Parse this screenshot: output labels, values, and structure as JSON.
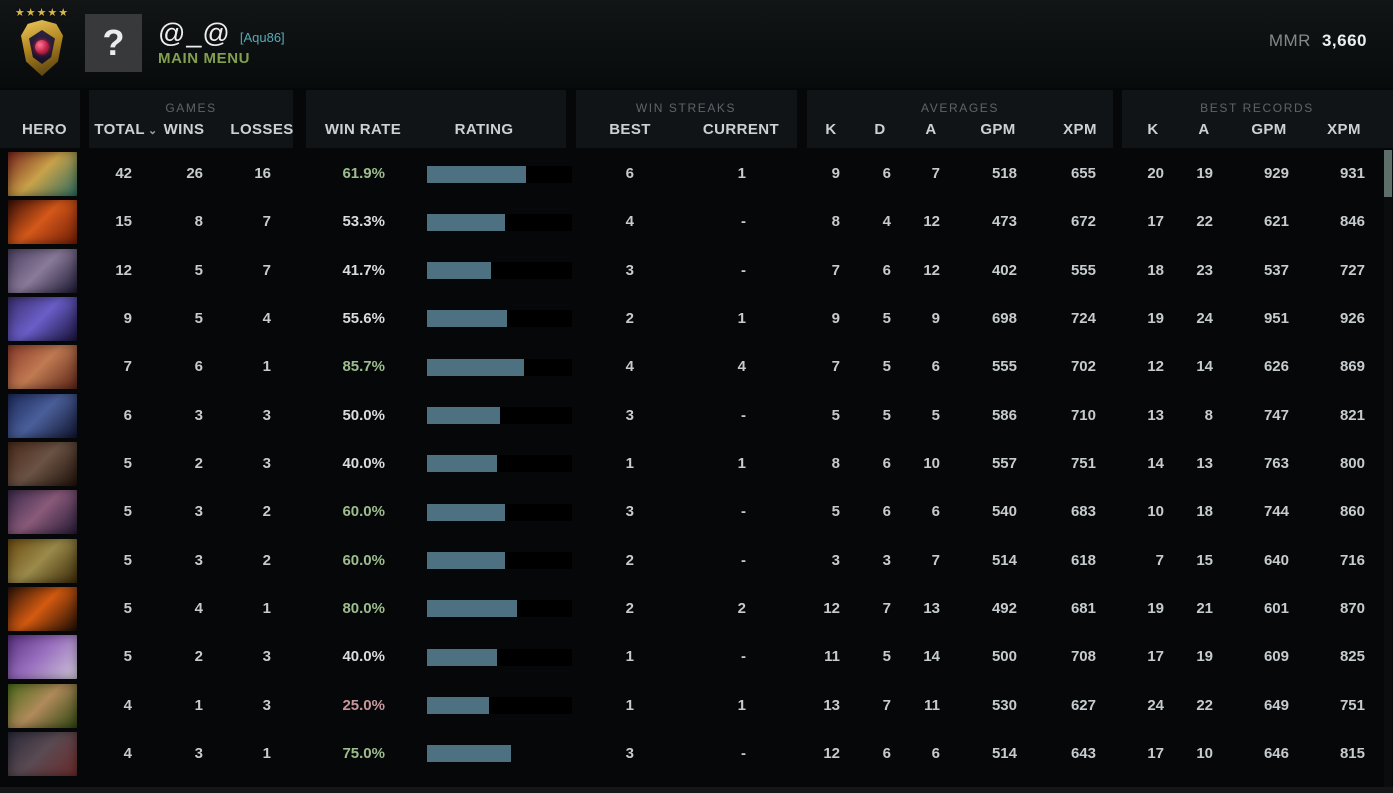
{
  "topbar": {
    "player_name": "@_@",
    "player_tag": "[Aqu86]",
    "main_menu_label": "MAIN MENU",
    "avatar_glyph": "?",
    "medal_stars": "★★★★★",
    "mmr_label": "MMR",
    "mmr_value": "3,660"
  },
  "header": {
    "hero": "HERO",
    "games_group": "GAMES",
    "total": "TOTAL",
    "sort_caret": "⌄",
    "wins": "WINS",
    "losses": "LOSSES",
    "win_rate": "WIN RATE",
    "rating": "RATING",
    "streaks_group": "WIN STREAKS",
    "best": "BEST",
    "current": "CURRENT",
    "averages_group": "AVERAGES",
    "k": "K",
    "d": "D",
    "a": "A",
    "gpm": "GPM",
    "xpm": "XPM",
    "records_group": "BEST RECORDS",
    "rk": "K",
    "ra": "A",
    "rgpm": "GPM",
    "rxpm": "XPM"
  },
  "theme": {
    "win_green": "#9dbd8d",
    "win_red": "#c9969b",
    "bar_fill": "#4e7182",
    "menu_green": "#82a04e",
    "tag_teal": "#58aab8",
    "star_gold": "#d8b84a"
  },
  "table": {
    "rows": [
      {
        "hero": {
          "id": "hero-01",
          "colors": [
            "#7a241c",
            "#c9a24a",
            "#2a6b5e"
          ]
        },
        "total": "42",
        "wins": "26",
        "losses": "16",
        "win_rate": "61.9%",
        "tone": "green",
        "rating_pct": 68,
        "rating_track": true,
        "best": "6",
        "current": "1",
        "k": "9",
        "d": "6",
        "a": "7",
        "gpm": "518",
        "xpm": "655",
        "bk": "20",
        "ba": "19",
        "bgpm": "929",
        "bxpm": "931"
      },
      {
        "hero": {
          "id": "hero-02",
          "colors": [
            "#3a0f06",
            "#d4581a",
            "#6e1c06"
          ]
        },
        "total": "15",
        "wins": "8",
        "losses": "7",
        "win_rate": "53.3%",
        "tone": "neutral",
        "rating_pct": 54,
        "rating_track": true,
        "best": "4",
        "current": "-",
        "k": "8",
        "d": "4",
        "a": "12",
        "gpm": "473",
        "xpm": "672",
        "bk": "17",
        "ba": "22",
        "bgpm": "621",
        "bxpm": "846"
      },
      {
        "hero": {
          "id": "hero-03",
          "colors": [
            "#4a4060",
            "#8a7a9a",
            "#1c1830"
          ]
        },
        "total": "12",
        "wins": "5",
        "losses": "7",
        "win_rate": "41.7%",
        "tone": "neutral",
        "rating_pct": 44,
        "rating_track": true,
        "best": "3",
        "current": "-",
        "k": "7",
        "d": "6",
        "a": "12",
        "gpm": "402",
        "xpm": "555",
        "bk": "18",
        "ba": "23",
        "bgpm": "537",
        "bxpm": "727"
      },
      {
        "hero": {
          "id": "hero-04",
          "colors": [
            "#3a2e6e",
            "#6a5ec8",
            "#18123a"
          ]
        },
        "total": "9",
        "wins": "5",
        "losses": "4",
        "win_rate": "55.6%",
        "tone": "neutral",
        "rating_pct": 55,
        "rating_track": true,
        "best": "2",
        "current": "1",
        "k": "9",
        "d": "5",
        "a": "9",
        "gpm": "698",
        "xpm": "724",
        "bk": "19",
        "ba": "24",
        "bgpm": "951",
        "bxpm": "926"
      },
      {
        "hero": {
          "id": "hero-05",
          "colors": [
            "#8a3a2a",
            "#c07a52",
            "#5a2418"
          ]
        },
        "total": "7",
        "wins": "6",
        "losses": "1",
        "win_rate": "85.7%",
        "tone": "green",
        "rating_pct": 67,
        "rating_track": true,
        "best": "4",
        "current": "4",
        "k": "7",
        "d": "5",
        "a": "6",
        "gpm": "555",
        "xpm": "702",
        "bk": "12",
        "ba": "14",
        "bgpm": "626",
        "bxpm": "869"
      },
      {
        "hero": {
          "id": "hero-06",
          "colors": [
            "#1c2a5a",
            "#4a5f9a",
            "#10142e"
          ]
        },
        "total": "6",
        "wins": "3",
        "losses": "3",
        "win_rate": "50.0%",
        "tone": "neutral",
        "rating_pct": 50,
        "rating_track": true,
        "best": "3",
        "current": "-",
        "k": "5",
        "d": "5",
        "a": "5",
        "gpm": "586",
        "xpm": "710",
        "bk": "13",
        "ba": "8",
        "bgpm": "747",
        "bxpm": "821"
      },
      {
        "hero": {
          "id": "hero-07",
          "colors": [
            "#4a2a1a",
            "#6a5244",
            "#1e1008"
          ]
        },
        "total": "5",
        "wins": "2",
        "losses": "3",
        "win_rate": "40.0%",
        "tone": "neutral",
        "rating_pct": 48,
        "rating_track": true,
        "best": "1",
        "current": "1",
        "k": "8",
        "d": "6",
        "a": "10",
        "gpm": "557",
        "xpm": "751",
        "bk": "14",
        "ba": "13",
        "bgpm": "763",
        "bxpm": "800"
      },
      {
        "hero": {
          "id": "hero-08",
          "colors": [
            "#3a2a4a",
            "#8a5a7a",
            "#241a34"
          ]
        },
        "total": "5",
        "wins": "3",
        "losses": "2",
        "win_rate": "60.0%",
        "tone": "green",
        "rating_pct": 54,
        "rating_track": true,
        "best": "3",
        "current": "-",
        "k": "5",
        "d": "6",
        "a": "6",
        "gpm": "540",
        "xpm": "683",
        "bk": "10",
        "ba": "18",
        "bgpm": "744",
        "bxpm": "860"
      },
      {
        "hero": {
          "id": "hero-09",
          "colors": [
            "#6a4a10",
            "#9a8a4a",
            "#3a2a08"
          ]
        },
        "total": "5",
        "wins": "3",
        "losses": "2",
        "win_rate": "60.0%",
        "tone": "green",
        "rating_pct": 54,
        "rating_track": true,
        "best": "2",
        "current": "-",
        "k": "3",
        "d": "3",
        "a": "7",
        "gpm": "514",
        "xpm": "618",
        "bk": "7",
        "ba": "15",
        "bgpm": "640",
        "bxpm": "716"
      },
      {
        "hero": {
          "id": "hero-10",
          "colors": [
            "#2a1408",
            "#d45a10",
            "#1a0c04"
          ]
        },
        "total": "5",
        "wins": "4",
        "losses": "1",
        "win_rate": "80.0%",
        "tone": "green",
        "rating_pct": 62,
        "rating_track": true,
        "best": "2",
        "current": "2",
        "k": "12",
        "d": "7",
        "a": "13",
        "gpm": "492",
        "xpm": "681",
        "bk": "19",
        "ba": "21",
        "bgpm": "601",
        "bxpm": "870"
      },
      {
        "hero": {
          "id": "hero-11",
          "colors": [
            "#5a3080",
            "#9a70c0",
            "#cfc8d8"
          ]
        },
        "total": "5",
        "wins": "2",
        "losses": "3",
        "win_rate": "40.0%",
        "tone": "neutral",
        "rating_pct": 48,
        "rating_track": true,
        "best": "1",
        "current": "-",
        "k": "11",
        "d": "5",
        "a": "14",
        "gpm": "500",
        "xpm": "708",
        "bk": "17",
        "ba": "19",
        "bgpm": "609",
        "bxpm": "825"
      },
      {
        "hero": {
          "id": "hero-12",
          "colors": [
            "#4a6a1a",
            "#b08a5a",
            "#2e4410"
          ]
        },
        "total": "4",
        "wins": "1",
        "losses": "3",
        "win_rate": "25.0%",
        "tone": "red",
        "rating_pct": 43,
        "rating_track": true,
        "best": "1",
        "current": "1",
        "k": "13",
        "d": "7",
        "a": "11",
        "gpm": "530",
        "xpm": "627",
        "bk": "24",
        "ba": "22",
        "bgpm": "649",
        "bxpm": "751"
      },
      {
        "hero": {
          "id": "hero-13",
          "colors": [
            "#2a2a3a",
            "#5a4a52",
            "#6a2a2a"
          ]
        },
        "total": "4",
        "wins": "3",
        "losses": "1",
        "win_rate": "75.0%",
        "tone": "green",
        "rating_pct": 58,
        "rating_track": false,
        "best": "3",
        "current": "-",
        "k": "12",
        "d": "6",
        "a": "6",
        "gpm": "514",
        "xpm": "643",
        "bk": "17",
        "ba": "10",
        "bgpm": "646",
        "bxpm": "815"
      }
    ]
  }
}
